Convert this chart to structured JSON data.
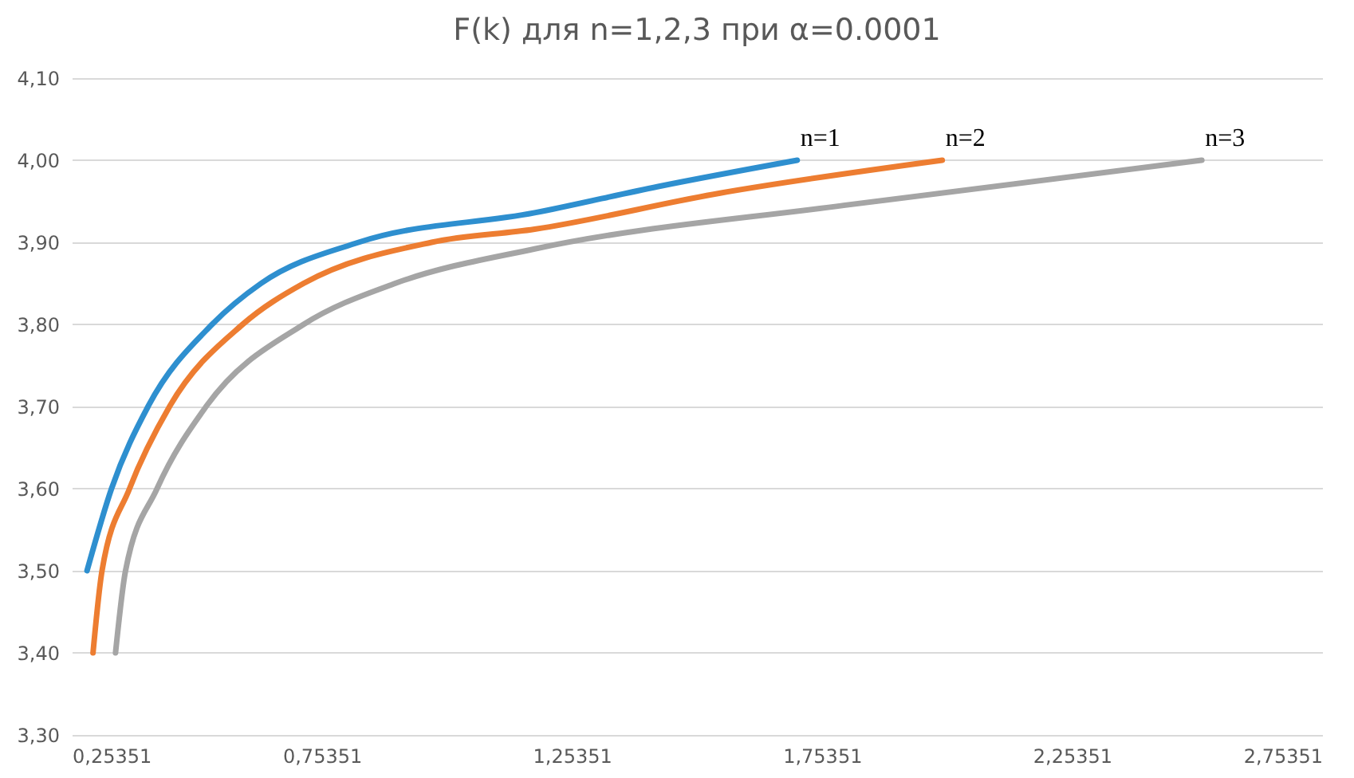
{
  "chart_data": {
    "type": "line",
    "title": "F(k) для n=1,2,3 при α=0.0001",
    "series": [
      {
        "color": "#2e8fcf",
        "x": [
          0.284,
          0.333,
          0.406,
          0.534,
          0.632,
          0.827,
          1.179,
          1.426,
          1.704
        ],
        "values": [
          3.5,
          3.6,
          3.7,
          3.8,
          3.85,
          3.9,
          3.936,
          3.968,
          4.0
        ]
      },
      {
        "color": "#ed7d31",
        "x": [
          0.296,
          0.314,
          0.369,
          0.449,
          0.595,
          0.717,
          0.973,
          1.179,
          1.55,
          1.994
        ],
        "values": [
          3.4,
          3.5,
          3.6,
          3.7,
          3.8,
          3.85,
          3.9,
          3.916,
          3.96,
          4.0
        ]
      },
      {
        "color": "#a5a5a5",
        "x": [
          0.341,
          0.361,
          0.424,
          0.522,
          0.717,
          0.9,
          1.179,
          1.797,
          2.513
        ],
        "values": [
          3.4,
          3.5,
          3.6,
          3.7,
          3.8,
          3.85,
          3.892,
          3.945,
          4.0
        ]
      }
    ],
    "annotations": [
      "n=1",
      "n=2",
      "n=3"
    ],
    "xlim": [
      0.25351,
      2.75351
    ],
    "xticks": [
      {
        "value": 0.25351,
        "label": "0,25351"
      },
      {
        "value": 0.75351,
        "label": "0,75351"
      },
      {
        "value": 1.25351,
        "label": "1,25351"
      },
      {
        "value": 1.75351,
        "label": "1,75351"
      },
      {
        "value": 2.25351,
        "label": "2,25351"
      },
      {
        "value": 2.75351,
        "label": "2,75351"
      }
    ],
    "ylim": [
      3.3,
      4.1
    ],
    "yticks": [
      {
        "value": 3.3,
        "label": "3,30"
      },
      {
        "value": 3.4,
        "label": "3,40"
      },
      {
        "value": 3.5,
        "label": "3,50"
      },
      {
        "value": 3.6,
        "label": "3,60"
      },
      {
        "value": 3.7,
        "label": "3,70"
      },
      {
        "value": 3.8,
        "label": "3,80"
      },
      {
        "value": 3.9,
        "label": "3,90"
      },
      {
        "value": 4.0,
        "label": "4,00"
      },
      {
        "value": 4.1,
        "label": "4,10"
      }
    ],
    "grid": "y",
    "marker": "none",
    "line_style": "solid"
  }
}
